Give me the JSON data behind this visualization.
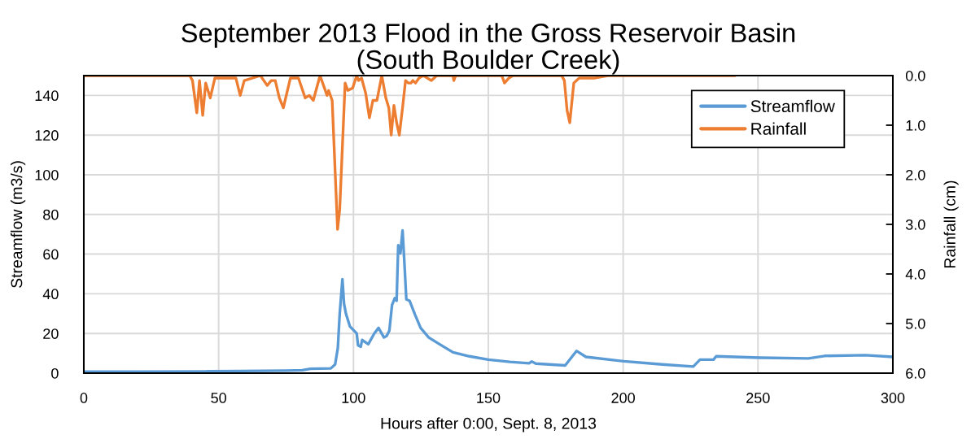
{
  "chart_data": {
    "type": "line",
    "title": "September 2013 Flood in the Gross Reservoir Basin\n(South Boulder Creek)",
    "xlabel": "Hours after 0:00, Sept. 8, 2013",
    "ylabel": "Streamflow (m3/s)",
    "y2label": "Rainfall (cm)",
    "xlim": [
      0,
      300
    ],
    "xticks": [
      0,
      50,
      100,
      150,
      200,
      250,
      300
    ],
    "ylim": [
      0,
      150
    ],
    "yticks": [
      0,
      20,
      40,
      60,
      80,
      100,
      120,
      140
    ],
    "y2lim": [
      6,
      0
    ],
    "y2ticks": [
      {
        "value": 0,
        "label": "0.0"
      },
      {
        "value": 1,
        "label": "1.0"
      },
      {
        "value": 2,
        "label": "2.0"
      },
      {
        "value": 3,
        "label": "3.0"
      },
      {
        "value": 4,
        "label": "4.0"
      },
      {
        "value": 5,
        "label": "5.0"
      },
      {
        "value": 6,
        "label": "6.0"
      }
    ],
    "grid": true,
    "legend": "top right",
    "series": [
      {
        "name": "Streamflow",
        "color": "#5b9bd5",
        "x": [
          0,
          20,
          45,
          58,
          75,
          81,
          84,
          91.6,
          93.2,
          94.2,
          94.9,
          95.9,
          96.5,
          97.2,
          98.7,
          101.2,
          101.7,
          102.7,
          103.2,
          105.5,
          107.7,
          109.3,
          111.3,
          112.3,
          113.3,
          114.3,
          115.3,
          116,
          116.6,
          117.4,
          118.2,
          118.8,
          119.6,
          120.8,
          122.8,
          124.9,
          127.9,
          131.9,
          136.9,
          143,
          150,
          158,
          165.1,
          166.1,
          167.6,
          178.5,
          182.7,
          186.2,
          200.3,
          214.4,
          226,
          228.5,
          233.5,
          234.5,
          250.6,
          268.7,
          274.7,
          289.8,
          300
        ],
        "values": [
          0.8,
          0.8,
          0.9,
          1.1,
          1.3,
          1.5,
          2.2,
          2.4,
          4.4,
          12.7,
          30,
          47.4,
          35,
          30,
          23.5,
          20,
          14,
          13.3,
          16.7,
          14.6,
          20,
          22.8,
          18,
          18.7,
          21.4,
          34.4,
          37.8,
          36.5,
          64.5,
          60.4,
          72,
          57.7,
          37.2,
          36.5,
          29.6,
          22.8,
          18,
          14.6,
          10.5,
          8.5,
          6.8,
          5.7,
          5,
          5.9,
          4.8,
          3.9,
          11.2,
          8.2,
          6,
          4.4,
          3.3,
          6.8,
          6.8,
          8.5,
          7.8,
          7.4,
          8.7,
          9.1,
          8.2
        ]
      },
      {
        "name": "Rainfall",
        "color": "#ed7d31",
        "axis": "y2",
        "x": [
          0,
          39.3,
          40.3,
          41.9,
          42.9,
          44.1,
          45.2,
          46.9,
          48.6,
          56.4,
          58,
          59.5,
          65.5,
          68,
          69.5,
          71,
          72.5,
          74,
          76.6,
          79.6,
          82.1,
          83.6,
          85.1,
          87.6,
          90.2,
          90.8,
          92.1,
          94.1,
          94.9,
          96.9,
          97.9,
          99.7,
          101.2,
          101.9,
          103,
          104.5,
          105.9,
          107.2,
          108.7,
          110.5,
          112,
          113.1,
          114,
          115,
          116,
          117,
          118.3,
          119.3,
          120.3,
          121.3,
          122,
          123,
          124.3,
          125.9,
          128.9,
          130.9,
          136.9,
          137.2,
          137.9,
          155,
          156,
          157.6,
          159.1,
          177.2,
          178.2,
          179.2,
          180.2,
          181.7,
          183.7,
          186.7,
          188.2,
          189.2,
          194.3,
          241.5
        ],
        "values": [
          0,
          0,
          0.1,
          0.75,
          0.1,
          0.8,
          0.15,
          0.45,
          0.05,
          0.05,
          0.4,
          0.1,
          0,
          0.2,
          0.1,
          0.1,
          0.45,
          0.65,
          0.05,
          0.05,
          0.45,
          0.4,
          0.5,
          0,
          0.4,
          0.3,
          0.5,
          3.1,
          2.7,
          0.15,
          0.3,
          0.25,
          0,
          0.1,
          0.05,
          0.35,
          0.85,
          0.5,
          0.5,
          0,
          0.45,
          0.65,
          1.2,
          0.6,
          0.95,
          1.2,
          0.6,
          0.1,
          0.15,
          0.15,
          0.1,
          0.15,
          0.05,
          0,
          0.1,
          0,
          0,
          0.1,
          0,
          0,
          0.15,
          0.05,
          0,
          0,
          0.1,
          0.7,
          0.95,
          0.15,
          0.05,
          0.05,
          0.05,
          0.05,
          0,
          0
        ]
      }
    ]
  }
}
